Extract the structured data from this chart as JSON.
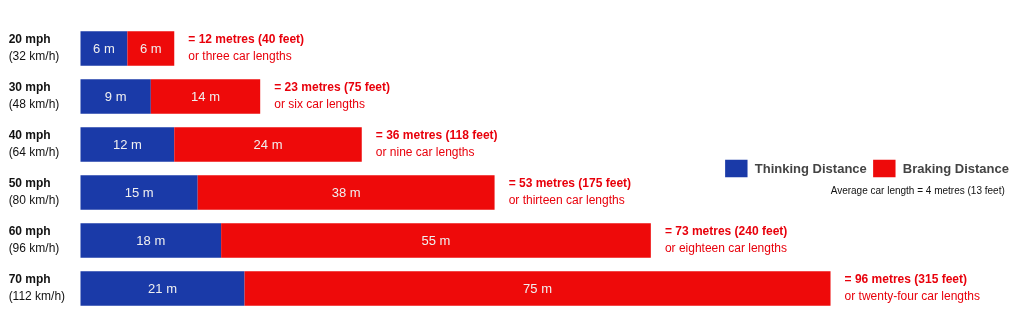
{
  "chart_data": {
    "type": "bar",
    "orientation": "horizontal",
    "stacked": true,
    "tick_labels": "y",
    "legend": "right",
    "categories": [
      "20 mph\n(32 km/h)",
      "30 mph\n(48 km/h)",
      "40 mph\n(64 km/h)",
      "50 mph\n(80 km/h)",
      "60 mph\n(96 km/h)",
      "70 mph\n(112 km/h)"
    ],
    "series": [
      {
        "name": "Thinking Distance",
        "color": "#1a3aa8",
        "values": [
          6,
          9,
          12,
          15,
          18,
          21
        ],
        "value_labels": [
          "6 m",
          "9 m",
          "12 m",
          "15 m",
          "18 m",
          "21 m"
        ]
      },
      {
        "name": "Braking Distance",
        "color": "#ee0a0a",
        "values": [
          6,
          14,
          24,
          38,
          55,
          75
        ],
        "value_labels": [
          "6 m",
          "14 m",
          "24 m",
          "38 m",
          "55 m",
          "75 m"
        ]
      }
    ],
    "totals": [
      "= 12 metres (40 feet)\nor three car lengths",
      "= 23 metres (75 feet)\nor six car lengths",
      "= 36 metres (118 feet)\nor nine car lengths",
      "= 53 metres (175 feet)\nor thirteen car lengths",
      "= 73 metres (240 feet)\nor eighteen car lengths",
      "= 96 metres (315 feet)\nor twenty-four car lengths"
    ],
    "annotations": [
      "Average car length = 4 metres (13 feet)"
    ]
  }
}
